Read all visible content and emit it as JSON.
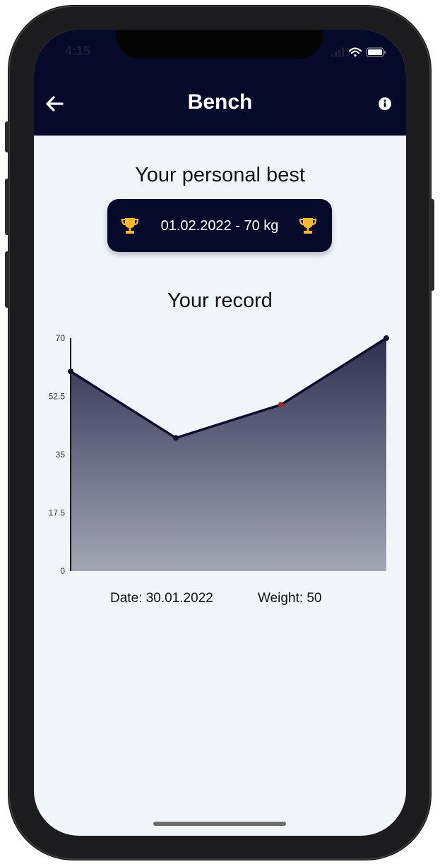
{
  "status_bar": {
    "time": "4:15"
  },
  "app_bar": {
    "title": "Bench"
  },
  "personal_best": {
    "heading": "Your personal best",
    "value": "01.02.2022 - 70 kg"
  },
  "record": {
    "heading": "Your record"
  },
  "selection": {
    "date_text": "Date: 30.01.2022",
    "weight_text": "Weight: 50"
  },
  "chart_data": {
    "type": "area",
    "x_index": [
      0,
      1,
      2,
      3
    ],
    "values": [
      60,
      40,
      50,
      70
    ],
    "highlighted_index": 2,
    "yticks": [
      "0",
      "17.5",
      "35",
      "52.5",
      "70"
    ],
    "ylim": [
      0,
      70
    ],
    "line_color": "#0b0f2e",
    "highlight_color": "#9c2a22"
  },
  "colors": {
    "app_bar": "#050a2a",
    "background": "#f1f5fa",
    "trophy": "#f5b82e"
  }
}
